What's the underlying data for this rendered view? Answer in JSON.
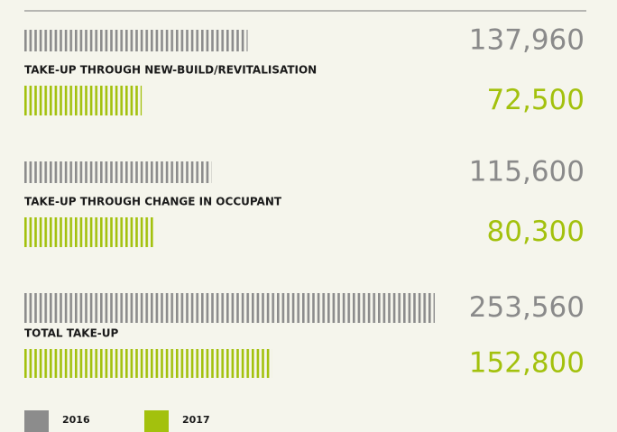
{
  "chart_data": {
    "type": "bar",
    "orientation": "horizontal",
    "categories": [
      "TAKE-UP THROUGH NEW-BUILD/REVITALISATION",
      "TAKE-UP THROUGH CHANGE IN OCCUPANT",
      "TOTAL TAKE-UP"
    ],
    "series": [
      {
        "name": "2016",
        "color": "#8c8c8c",
        "values": [
          137960,
          115600,
          253560
        ],
        "value_labels": [
          "137,960",
          "115,600",
          "253,560"
        ]
      },
      {
        "name": "2017",
        "color": "#a3c10d",
        "values": [
          72500,
          80300,
          152800
        ],
        "value_labels": [
          "72,500",
          "80,300",
          "152,800"
        ]
      }
    ]
  }
}
